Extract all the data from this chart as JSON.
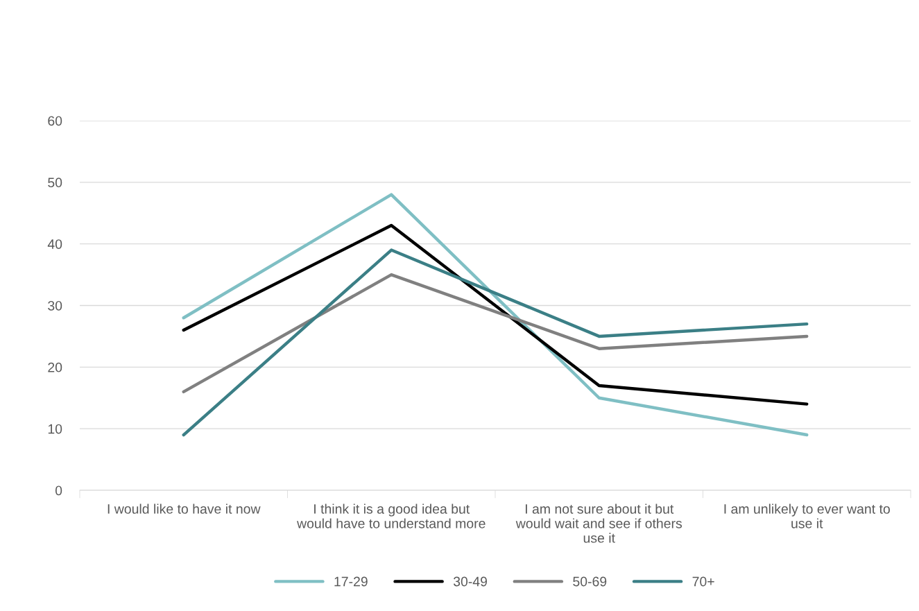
{
  "chart_data": {
    "type": "line",
    "categories": [
      "I would like to have it now",
      "I think it is a good idea but would have to understand more",
      "I am not sure about it but would wait and see if others use it",
      "I am unlikely to ever want to use it"
    ],
    "series": [
      {
        "name": "17-29",
        "color": "#7fbfc4",
        "values": [
          28,
          48,
          15,
          9
        ]
      },
      {
        "name": "30-49",
        "color": "#000000",
        "values": [
          26,
          43,
          17,
          14
        ]
      },
      {
        "name": "50-69",
        "color": "#808080",
        "values": [
          16,
          35,
          23,
          25
        ]
      },
      {
        "name": "70+",
        "color": "#3b7f86",
        "values": [
          9,
          39,
          25,
          27
        ]
      }
    ],
    "ylim": [
      0,
      60
    ],
    "yticks": [
      0,
      10,
      20,
      30,
      40,
      50,
      60
    ],
    "grid": "y",
    "legend": "bottom",
    "marker": "none",
    "line_style": "solid"
  }
}
